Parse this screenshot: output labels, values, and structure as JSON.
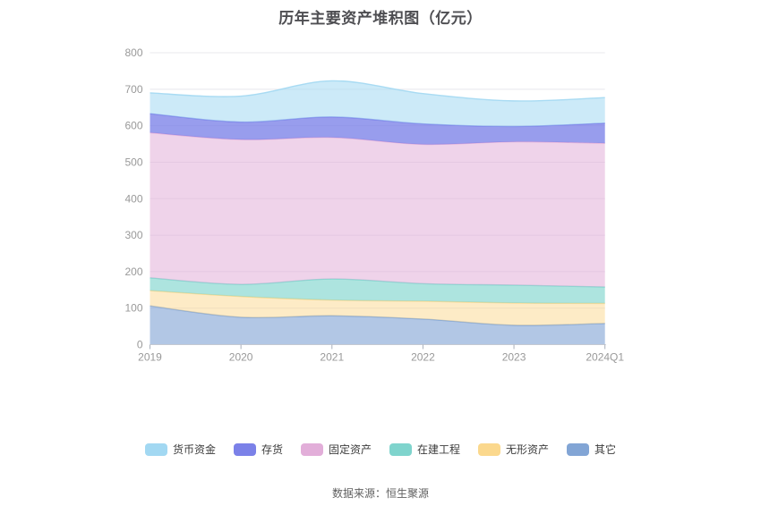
{
  "title": {
    "text": "历年主要资产堆积图（亿元）"
  },
  "footer": {
    "text": "数据来源：恒生聚源"
  },
  "chart_data": {
    "type": "area",
    "stacked": true,
    "smooth": true,
    "title": "历年主要资产堆积图（亿元）",
    "categories": [
      "2019",
      "2020",
      "2021",
      "2022",
      "2023",
      "2024Q1"
    ],
    "series": [
      {
        "key": "money-funds",
        "name": "货币资金",
        "values": [
          57,
          71,
          99,
          83,
          70,
          70
        ],
        "line": "#a2d8f2",
        "fill_opacity": 0.55
      },
      {
        "key": "inventory",
        "name": "存货",
        "values": [
          52,
          48,
          56,
          56,
          42,
          55
        ],
        "line": "#7b81e8",
        "fill_opacity": 0.78
      },
      {
        "key": "fixed-assets",
        "name": "固定资产",
        "values": [
          398,
          397,
          388,
          382,
          393,
          394
        ],
        "line": "#e2aed9",
        "fill_opacity": 0.55
      },
      {
        "key": "construction-in-progress",
        "name": "在建工程",
        "values": [
          35,
          33,
          58,
          48,
          49,
          45
        ],
        "line": "#7fd4cd",
        "fill_opacity": 0.64
      },
      {
        "key": "intangible-assets",
        "name": "无形资产",
        "values": [
          42,
          57,
          43,
          49,
          61,
          55
        ],
        "line": "#fbd88d",
        "fill_opacity": 0.5
      },
      {
        "key": "other",
        "name": "其它",
        "values": [
          106,
          75,
          79,
          70,
          53,
          58
        ],
        "line": "#82a5d5",
        "fill_opacity": 0.62
      }
    ],
    "stack_order_bottom_to_top": [
      "其它",
      "无形资产",
      "在建工程",
      "固定资产",
      "存货",
      "货币资金"
    ],
    "totals_by_year": [
      690,
      681,
      723,
      688,
      668,
      677
    ],
    "ylim": [
      0,
      800
    ],
    "yticks": [
      0,
      100,
      200,
      300,
      400,
      500,
      600,
      700,
      800
    ],
    "xlabel": "",
    "ylabel": "",
    "grid": true,
    "legend_position": "bottom"
  }
}
